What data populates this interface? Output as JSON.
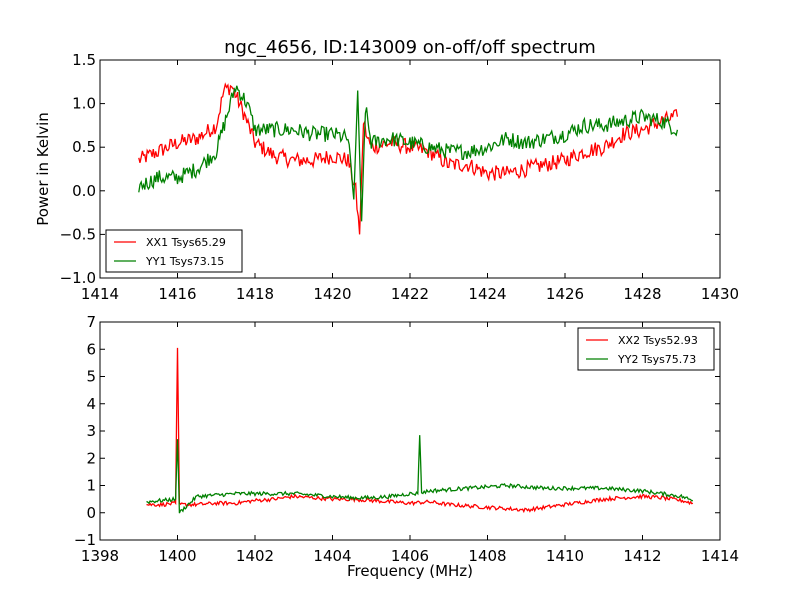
{
  "figure": {
    "title": "ngc_4656, ID:143009 on-off/off spectrum"
  },
  "chart_data": [
    {
      "type": "line",
      "title": "ngc_4656, ID:143009 on-off/off spectrum",
      "xlabel": "",
      "ylabel": "Power in Kelvin",
      "xlim": [
        1414,
        1430
      ],
      "ylim": [
        -1.0,
        1.5
      ],
      "xticks": [
        "1414",
        "1416",
        "1418",
        "1420",
        "1422",
        "1424",
        "1426",
        "1428",
        "1430"
      ],
      "yticks": [
        "−1.0",
        "−0.5",
        "0.0",
        "0.5",
        "1.0",
        "1.5"
      ],
      "xtick_values": [
        1414,
        1416,
        1418,
        1420,
        1422,
        1424,
        1426,
        1428,
        1430
      ],
      "ytick_values": [
        -1.0,
        -0.5,
        0.0,
        0.5,
        1.0,
        1.5
      ],
      "grid": false,
      "legend_position": "lower-left",
      "series": [
        {
          "name": "XX1 Tsys65.29",
          "color": "#ff0000",
          "x": [
            1415.0,
            1415.5,
            1416.0,
            1416.5,
            1417.0,
            1417.2,
            1417.4,
            1417.7,
            1418.0,
            1418.5,
            1419.0,
            1419.5,
            1420.0,
            1420.4,
            1420.6,
            1420.7,
            1420.8,
            1420.9,
            1421.0,
            1421.5,
            1422.0,
            1422.5,
            1423.0,
            1423.5,
            1424.0,
            1424.5,
            1425.0,
            1425.5,
            1426.0,
            1426.5,
            1427.0,
            1427.5,
            1428.0,
            1428.5,
            1428.9
          ],
          "y": [
            0.35,
            0.45,
            0.55,
            0.6,
            0.75,
            1.15,
            1.2,
            0.9,
            0.55,
            0.4,
            0.35,
            0.35,
            0.4,
            0.35,
            0.0,
            -0.5,
            0.8,
            0.6,
            0.5,
            0.55,
            0.5,
            0.45,
            0.3,
            0.3,
            0.2,
            0.2,
            0.25,
            0.3,
            0.35,
            0.45,
            0.5,
            0.65,
            0.7,
            0.8,
            0.85
          ]
        },
        {
          "name": "YY1 Tsys73.15",
          "color": "#008000",
          "x": [
            1415.0,
            1415.5,
            1416.0,
            1416.5,
            1417.0,
            1417.3,
            1417.5,
            1417.8,
            1418.0,
            1418.5,
            1419.0,
            1419.5,
            1420.0,
            1420.4,
            1420.55,
            1420.65,
            1420.75,
            1420.85,
            1421.0,
            1421.5,
            1422.0,
            1422.5,
            1423.0,
            1423.5,
            1424.0,
            1424.5,
            1425.0,
            1425.5,
            1426.0,
            1426.5,
            1427.0,
            1427.5,
            1428.0,
            1428.5,
            1428.9
          ],
          "y": [
            0.05,
            0.15,
            0.15,
            0.25,
            0.45,
            0.9,
            1.2,
            1.0,
            0.7,
            0.7,
            0.7,
            0.65,
            0.65,
            0.6,
            -0.1,
            1.15,
            -0.35,
            0.95,
            0.55,
            0.6,
            0.55,
            0.5,
            0.45,
            0.45,
            0.5,
            0.6,
            0.55,
            0.6,
            0.65,
            0.75,
            0.75,
            0.8,
            0.85,
            0.8,
            0.7
          ]
        }
      ]
    },
    {
      "type": "line",
      "title": "",
      "xlabel": "Frequency (MHz)",
      "ylabel": "",
      "xlim": [
        1398,
        1414
      ],
      "ylim": [
        -1,
        7
      ],
      "xticks": [
        "1398",
        "1400",
        "1402",
        "1404",
        "1406",
        "1408",
        "1410",
        "1412",
        "1414"
      ],
      "yticks": [
        "−1",
        "0",
        "1",
        "2",
        "3",
        "4",
        "5",
        "6",
        "7"
      ],
      "xtick_values": [
        1398,
        1400,
        1402,
        1404,
        1406,
        1408,
        1410,
        1412,
        1414
      ],
      "ytick_values": [
        -1,
        0,
        1,
        2,
        3,
        4,
        5,
        6,
        7
      ],
      "grid": false,
      "legend_position": "upper-right",
      "series": [
        {
          "name": "XX2 Tsys52.93",
          "color": "#ff0000",
          "x": [
            1399.2,
            1399.6,
            1399.95,
            1400.0,
            1400.05,
            1400.5,
            1401.0,
            1401.5,
            1402.0,
            1402.5,
            1403.0,
            1403.5,
            1404.0,
            1404.5,
            1405.0,
            1405.5,
            1406.0,
            1406.5,
            1407.0,
            1407.5,
            1408.0,
            1408.5,
            1409.0,
            1409.5,
            1410.0,
            1410.5,
            1411.0,
            1411.5,
            1412.0,
            1412.5,
            1413.0,
            1413.3
          ],
          "y": [
            0.3,
            0.3,
            0.35,
            6.05,
            0.3,
            0.3,
            0.35,
            0.35,
            0.45,
            0.5,
            0.6,
            0.55,
            0.5,
            0.5,
            0.45,
            0.4,
            0.35,
            0.4,
            0.3,
            0.25,
            0.2,
            0.15,
            0.1,
            0.2,
            0.3,
            0.4,
            0.5,
            0.55,
            0.6,
            0.55,
            0.45,
            0.35
          ]
        },
        {
          "name": "YY2 Tsys75.73",
          "color": "#008000",
          "x": [
            1399.2,
            1399.6,
            1399.95,
            1400.0,
            1400.05,
            1400.5,
            1401.0,
            1401.5,
            1402.0,
            1402.5,
            1403.0,
            1403.5,
            1404.0,
            1404.5,
            1405.0,
            1405.5,
            1406.0,
            1406.2,
            1406.25,
            1406.3,
            1406.5,
            1407.0,
            1407.5,
            1408.0,
            1408.5,
            1409.0,
            1409.5,
            1410.0,
            1410.5,
            1411.0,
            1411.5,
            1412.0,
            1412.5,
            1413.0,
            1413.3
          ],
          "y": [
            0.4,
            0.45,
            0.5,
            2.7,
            0.0,
            0.6,
            0.65,
            0.7,
            0.7,
            0.7,
            0.7,
            0.65,
            0.6,
            0.55,
            0.55,
            0.6,
            0.7,
            0.7,
            2.85,
            0.75,
            0.8,
            0.85,
            0.9,
            0.95,
            1.0,
            0.95,
            0.9,
            0.9,
            0.9,
            0.9,
            0.85,
            0.8,
            0.7,
            0.6,
            0.45
          ]
        }
      ]
    }
  ]
}
